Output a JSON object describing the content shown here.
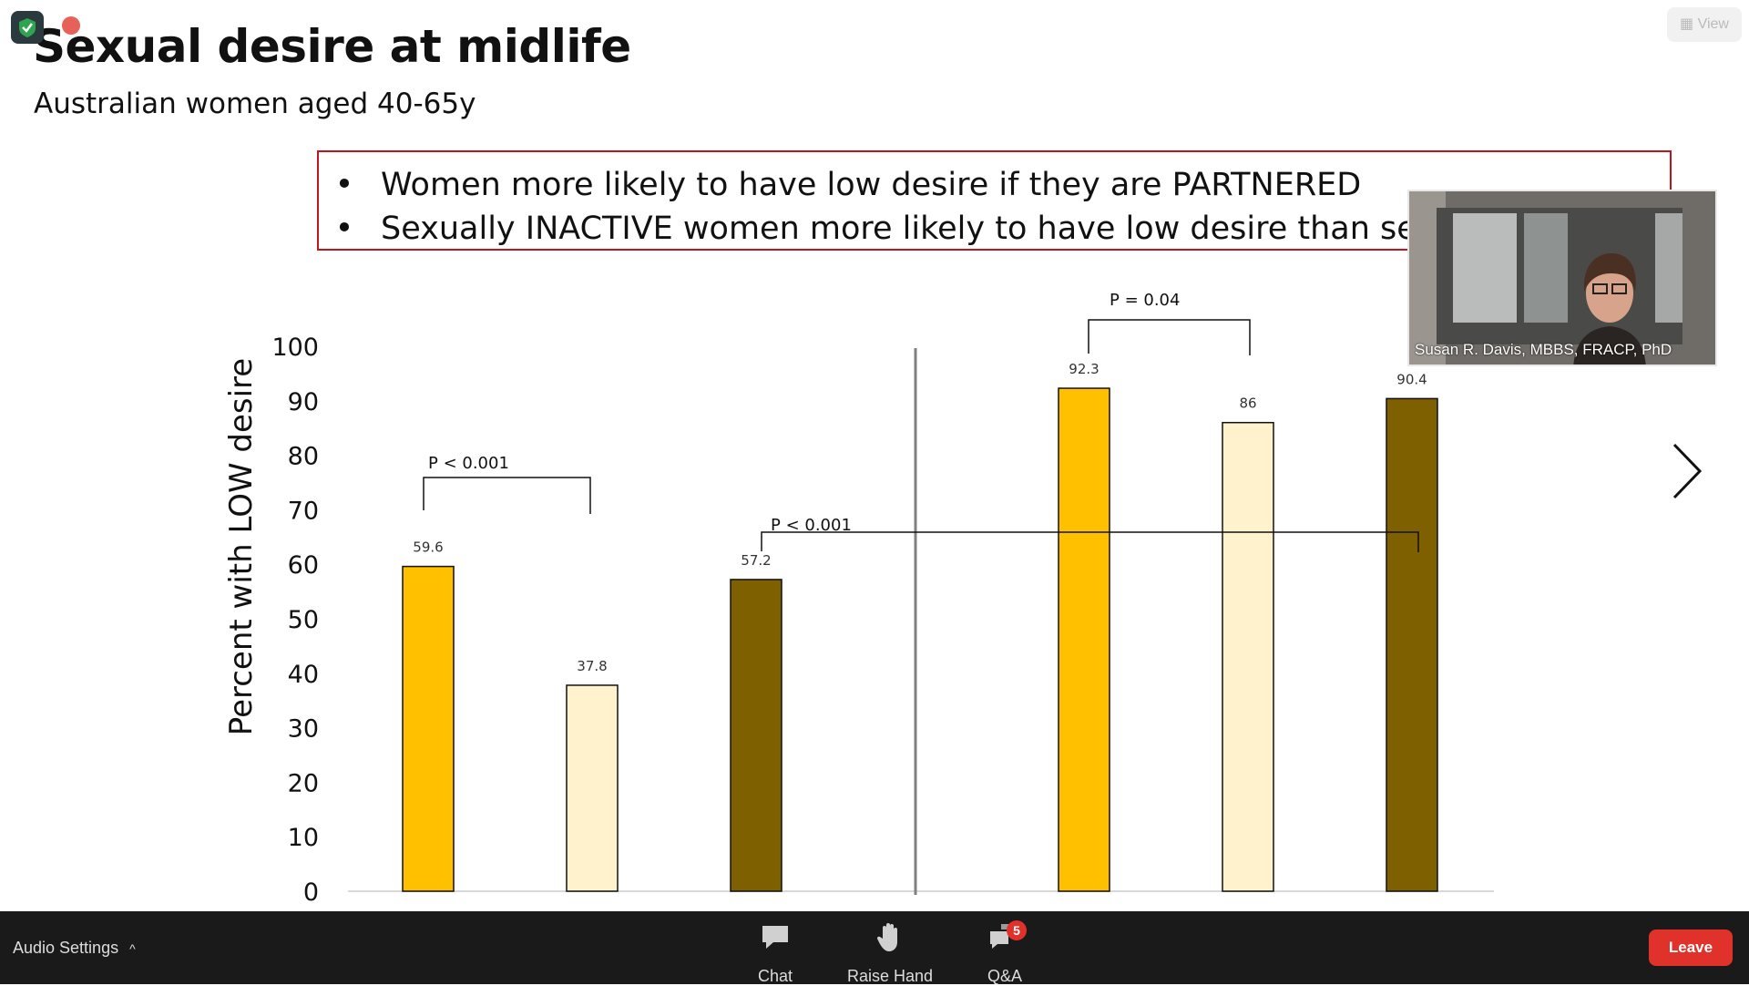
{
  "slide": {
    "title": "Sexual desire at midlife",
    "subtitle": "Australian women aged 40-65y",
    "bullets": [
      "Women more likely to have low desire if they are PARTNERED",
      "Sexually INACTIVE women more likely to have low desire than sexually"
    ],
    "colors": {
      "accent": "#c0141f",
      "partnered": "#ffc000",
      "unpartnered": "#fff2cc",
      "total": "#7f6000"
    }
  },
  "chart_data": {
    "type": "bar",
    "ylabel": "Percent with LOW desire",
    "ylim": [
      0,
      100
    ],
    "yticks": [
      0,
      10,
      20,
      30,
      40,
      50,
      60,
      70,
      80,
      90,
      100
    ],
    "groups": [
      {
        "bars": [
          {
            "value": 59.6,
            "label": "59.6",
            "color": "#ffc000"
          },
          {
            "value": 37.8,
            "label": "37.8",
            "color": "#fff2cc"
          },
          {
            "value": 57.2,
            "label": "57.2",
            "color": "#7f6000"
          }
        ]
      },
      {
        "bars": [
          {
            "value": 92.3,
            "label": "92.3",
            "color": "#ffc000"
          },
          {
            "value": 86,
            "label": "86",
            "color": "#fff2cc"
          },
          {
            "value": 90.4,
            "label": "90.4",
            "color": "#7f6000"
          }
        ]
      }
    ],
    "annotations": [
      "P < 0.001",
      "P < 0.001",
      "P = 0.04"
    ]
  },
  "video": {
    "name": "Susan R. Davis, MBBS, FRACP, PhD"
  },
  "view_label": "View",
  "toolbar": {
    "audio_label": "Audio Settings",
    "chat_label": "Chat",
    "raise_hand_label": "Raise Hand",
    "qa_label": "Q&A",
    "qa_badge": "5",
    "leave_label": "Leave"
  }
}
